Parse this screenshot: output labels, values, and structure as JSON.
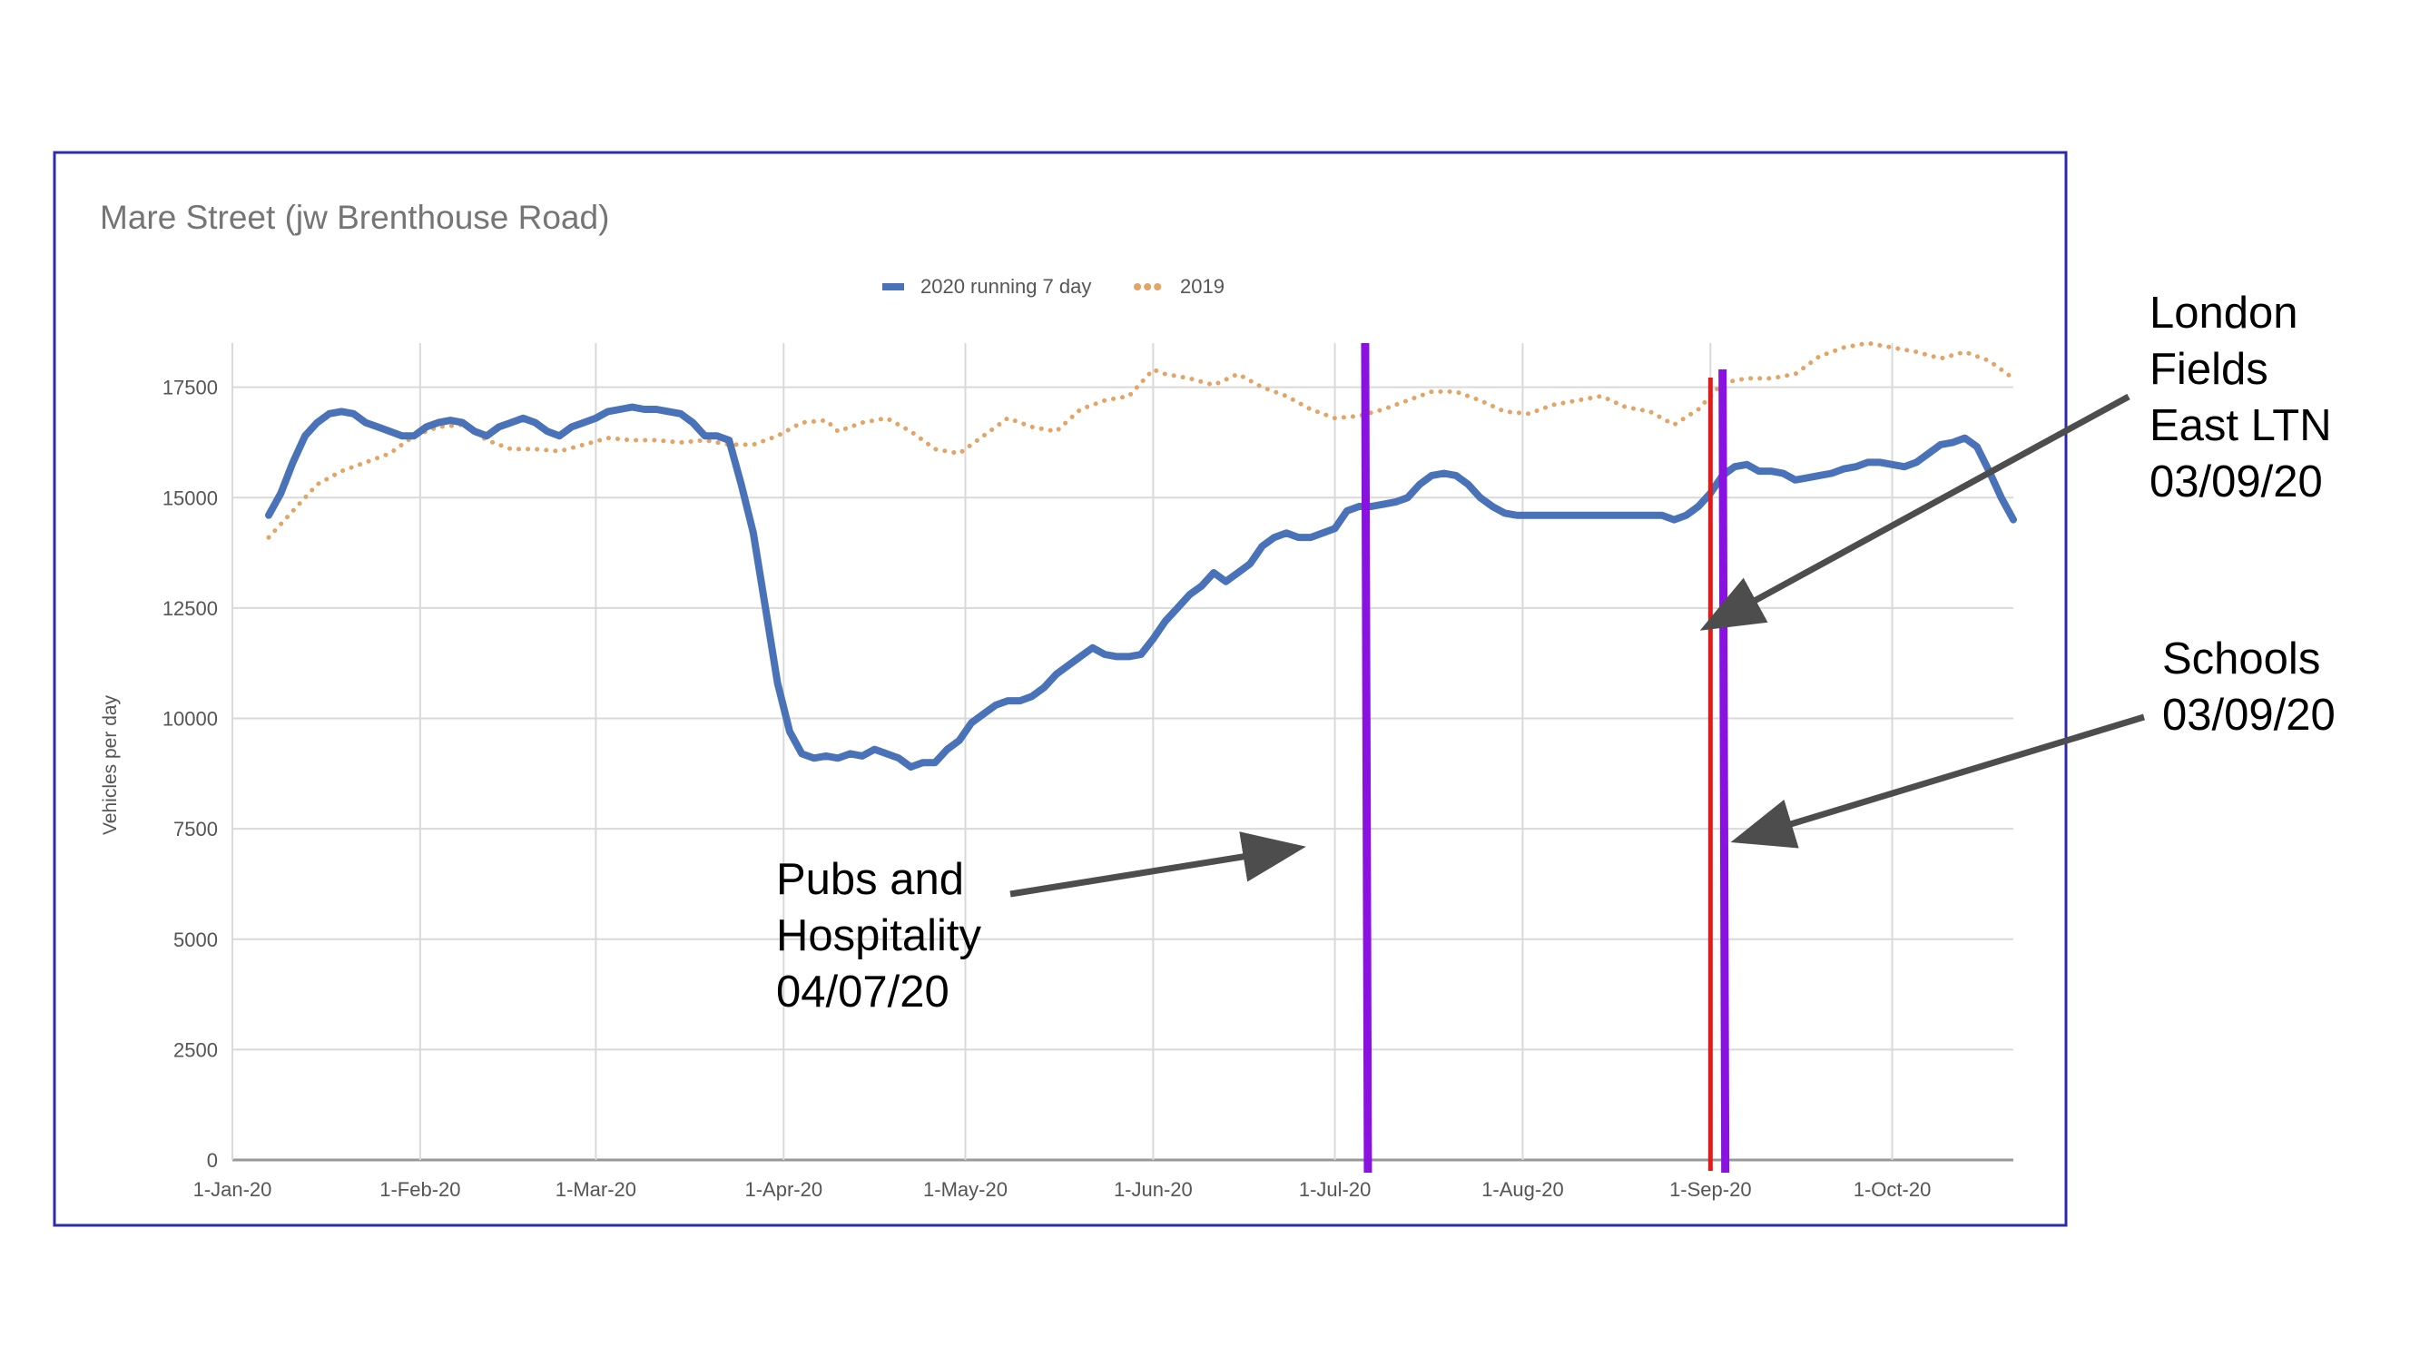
{
  "colors": {
    "border": "#2c2ca8",
    "series_2020": "#4a72b8",
    "series_2019": "#e3a465",
    "grid": "#d9d9d9",
    "axis_text": "#555555",
    "title_text": "#757575",
    "event_line": "#8a12e0",
    "ltn_line": "#e01b1b",
    "arrow": "#4d4d4d",
    "annotation_text": "#000000"
  },
  "chart_data": {
    "type": "line",
    "title": "Mare Street (jw Brenthouse Road)",
    "ylabel": "Vehicles per day",
    "xlabel": "",
    "ylim": [
      0,
      18500
    ],
    "x_range_days": [
      0,
      294
    ],
    "yticks": [
      {
        "label": "0",
        "value": 0
      },
      {
        "label": "2500",
        "value": 2500
      },
      {
        "label": "5000",
        "value": 5000
      },
      {
        "label": "7500",
        "value": 7500
      },
      {
        "label": "10000",
        "value": 10000
      },
      {
        "label": "12500",
        "value": 12500
      },
      {
        "label": "15000",
        "value": 15000
      },
      {
        "label": "17500",
        "value": 17500
      }
    ],
    "xticks": [
      {
        "label": "1-Jan-20",
        "day": 0
      },
      {
        "label": "1-Feb-20",
        "day": 31
      },
      {
        "label": "1-Mar-20",
        "day": 60
      },
      {
        "label": "1-Apr-20",
        "day": 91
      },
      {
        "label": "1-May-20",
        "day": 121
      },
      {
        "label": "1-Jun-20",
        "day": 152
      },
      {
        "label": "1-Jul-20",
        "day": 182
      },
      {
        "label": "1-Aug-20",
        "day": 213
      },
      {
        "label": "1-Sep-20",
        "day": 244
      },
      {
        "label": "1-Oct-20",
        "day": 274
      }
    ],
    "grid": true,
    "legend_position": "top-center",
    "series": [
      {
        "name": "2020 running 7 day",
        "style": "solid",
        "points": [
          [
            6,
            14600
          ],
          [
            8,
            15100
          ],
          [
            10,
            15800
          ],
          [
            12,
            16400
          ],
          [
            14,
            16700
          ],
          [
            16,
            16900
          ],
          [
            18,
            16950
          ],
          [
            20,
            16900
          ],
          [
            22,
            16700
          ],
          [
            24,
            16600
          ],
          [
            26,
            16500
          ],
          [
            28,
            16400
          ],
          [
            30,
            16400
          ],
          [
            32,
            16600
          ],
          [
            34,
            16700
          ],
          [
            36,
            16750
          ],
          [
            38,
            16700
          ],
          [
            40,
            16500
          ],
          [
            42,
            16400
          ],
          [
            44,
            16600
          ],
          [
            46,
            16700
          ],
          [
            48,
            16800
          ],
          [
            50,
            16700
          ],
          [
            52,
            16500
          ],
          [
            54,
            16400
          ],
          [
            56,
            16600
          ],
          [
            58,
            16700
          ],
          [
            60,
            16800
          ],
          [
            62,
            16950
          ],
          [
            64,
            17000
          ],
          [
            66,
            17050
          ],
          [
            68,
            17000
          ],
          [
            70,
            17000
          ],
          [
            72,
            16950
          ],
          [
            74,
            16900
          ],
          [
            76,
            16700
          ],
          [
            78,
            16400
          ],
          [
            80,
            16400
          ],
          [
            82,
            16300
          ],
          [
            84,
            15300
          ],
          [
            86,
            14200
          ],
          [
            88,
            12500
          ],
          [
            90,
            10800
          ],
          [
            92,
            9700
          ],
          [
            94,
            9200
          ],
          [
            96,
            9100
          ],
          [
            98,
            9150
          ],
          [
            100,
            9100
          ],
          [
            102,
            9200
          ],
          [
            104,
            9150
          ],
          [
            106,
            9300
          ],
          [
            108,
            9200
          ],
          [
            110,
            9100
          ],
          [
            112,
            8900
          ],
          [
            114,
            9000
          ],
          [
            116,
            9000
          ],
          [
            118,
            9300
          ],
          [
            120,
            9500
          ],
          [
            122,
            9900
          ],
          [
            124,
            10100
          ],
          [
            126,
            10300
          ],
          [
            128,
            10400
          ],
          [
            130,
            10400
          ],
          [
            132,
            10500
          ],
          [
            134,
            10700
          ],
          [
            136,
            11000
          ],
          [
            138,
            11200
          ],
          [
            140,
            11400
          ],
          [
            142,
            11600
          ],
          [
            144,
            11450
          ],
          [
            146,
            11400
          ],
          [
            148,
            11400
          ],
          [
            150,
            11450
          ],
          [
            152,
            11800
          ],
          [
            154,
            12200
          ],
          [
            156,
            12500
          ],
          [
            158,
            12800
          ],
          [
            160,
            13000
          ],
          [
            162,
            13300
          ],
          [
            164,
            13100
          ],
          [
            166,
            13300
          ],
          [
            168,
            13500
          ],
          [
            170,
            13900
          ],
          [
            172,
            14100
          ],
          [
            174,
            14200
          ],
          [
            176,
            14100
          ],
          [
            178,
            14100
          ],
          [
            180,
            14200
          ],
          [
            182,
            14300
          ],
          [
            184,
            14700
          ],
          [
            186,
            14800
          ],
          [
            188,
            14800
          ],
          [
            190,
            14850
          ],
          [
            192,
            14900
          ],
          [
            194,
            15000
          ],
          [
            196,
            15300
          ],
          [
            198,
            15500
          ],
          [
            200,
            15550
          ],
          [
            202,
            15500
          ],
          [
            204,
            15300
          ],
          [
            206,
            15000
          ],
          [
            208,
            14800
          ],
          [
            210,
            14650
          ],
          [
            212,
            14600
          ],
          [
            214,
            14600
          ],
          [
            216,
            14600
          ],
          [
            220,
            14600
          ],
          [
            224,
            14600
          ],
          [
            228,
            14600
          ],
          [
            232,
            14600
          ],
          [
            236,
            14600
          ],
          [
            238,
            14500
          ],
          [
            240,
            14600
          ],
          [
            242,
            14800
          ],
          [
            244,
            15100
          ],
          [
            246,
            15500
          ],
          [
            248,
            15700
          ],
          [
            250,
            15750
          ],
          [
            252,
            15600
          ],
          [
            254,
            15600
          ],
          [
            256,
            15550
          ],
          [
            258,
            15400
          ],
          [
            260,
            15450
          ],
          [
            262,
            15500
          ],
          [
            264,
            15550
          ],
          [
            266,
            15650
          ],
          [
            268,
            15700
          ],
          [
            270,
            15800
          ],
          [
            272,
            15800
          ],
          [
            274,
            15750
          ],
          [
            276,
            15700
          ],
          [
            278,
            15800
          ],
          [
            280,
            16000
          ],
          [
            282,
            16200
          ],
          [
            284,
            16250
          ],
          [
            286,
            16350
          ],
          [
            288,
            16150
          ],
          [
            290,
            15600
          ],
          [
            292,
            15000
          ],
          [
            294,
            14500
          ]
        ]
      },
      {
        "name": "2019",
        "style": "dotted",
        "points": [
          [
            6,
            14100
          ],
          [
            10,
            14700
          ],
          [
            14,
            15300
          ],
          [
            18,
            15600
          ],
          [
            22,
            15800
          ],
          [
            26,
            16000
          ],
          [
            30,
            16400
          ],
          [
            34,
            16600
          ],
          [
            38,
            16650
          ],
          [
            42,
            16300
          ],
          [
            46,
            16100
          ],
          [
            50,
            16100
          ],
          [
            54,
            16050
          ],
          [
            58,
            16200
          ],
          [
            62,
            16350
          ],
          [
            66,
            16300
          ],
          [
            70,
            16300
          ],
          [
            74,
            16250
          ],
          [
            78,
            16300
          ],
          [
            82,
            16200
          ],
          [
            86,
            16200
          ],
          [
            90,
            16400
          ],
          [
            94,
            16700
          ],
          [
            98,
            16750
          ],
          [
            100,
            16500
          ],
          [
            104,
            16700
          ],
          [
            108,
            16800
          ],
          [
            112,
            16500
          ],
          [
            116,
            16100
          ],
          [
            120,
            16000
          ],
          [
            124,
            16400
          ],
          [
            128,
            16800
          ],
          [
            132,
            16600
          ],
          [
            136,
            16500
          ],
          [
            140,
            17000
          ],
          [
            144,
            17200
          ],
          [
            148,
            17300
          ],
          [
            152,
            17900
          ],
          [
            154,
            17800
          ],
          [
            158,
            17700
          ],
          [
            162,
            17550
          ],
          [
            166,
            17800
          ],
          [
            170,
            17500
          ],
          [
            174,
            17300
          ],
          [
            178,
            17000
          ],
          [
            182,
            16800
          ],
          [
            186,
            16850
          ],
          [
            190,
            17000
          ],
          [
            194,
            17200
          ],
          [
            198,
            17400
          ],
          [
            202,
            17400
          ],
          [
            206,
            17200
          ],
          [
            210,
            16950
          ],
          [
            214,
            16900
          ],
          [
            218,
            17100
          ],
          [
            222,
            17200
          ],
          [
            226,
            17300
          ],
          [
            230,
            17050
          ],
          [
            234,
            16950
          ],
          [
            238,
            16650
          ],
          [
            242,
            17000
          ],
          [
            246,
            17600
          ],
          [
            250,
            17700
          ],
          [
            254,
            17700
          ],
          [
            258,
            17800
          ],
          [
            262,
            18200
          ],
          [
            266,
            18400
          ],
          [
            270,
            18500
          ],
          [
            274,
            18400
          ],
          [
            278,
            18300
          ],
          [
            282,
            18150
          ],
          [
            286,
            18300
          ],
          [
            290,
            18100
          ],
          [
            294,
            17700
          ]
        ]
      }
    ],
    "legend": [
      {
        "label": "2020 running 7 day",
        "style": "solid"
      },
      {
        "label": "2019",
        "style": "dotted"
      }
    ],
    "event_lines": [
      {
        "day": 187,
        "color_key": "event_line"
      },
      {
        "day": 246,
        "color_key": "event_line"
      },
      {
        "day": 244,
        "color_key": "ltn_line"
      }
    ]
  },
  "annotations": {
    "pubs": [
      "Pubs and",
      "Hospitality",
      "04/07/20"
    ],
    "ltn": [
      "London",
      "Fields",
      "East LTN",
      "03/09/20"
    ],
    "schools": [
      "Schools",
      "03/09/20"
    ]
  }
}
